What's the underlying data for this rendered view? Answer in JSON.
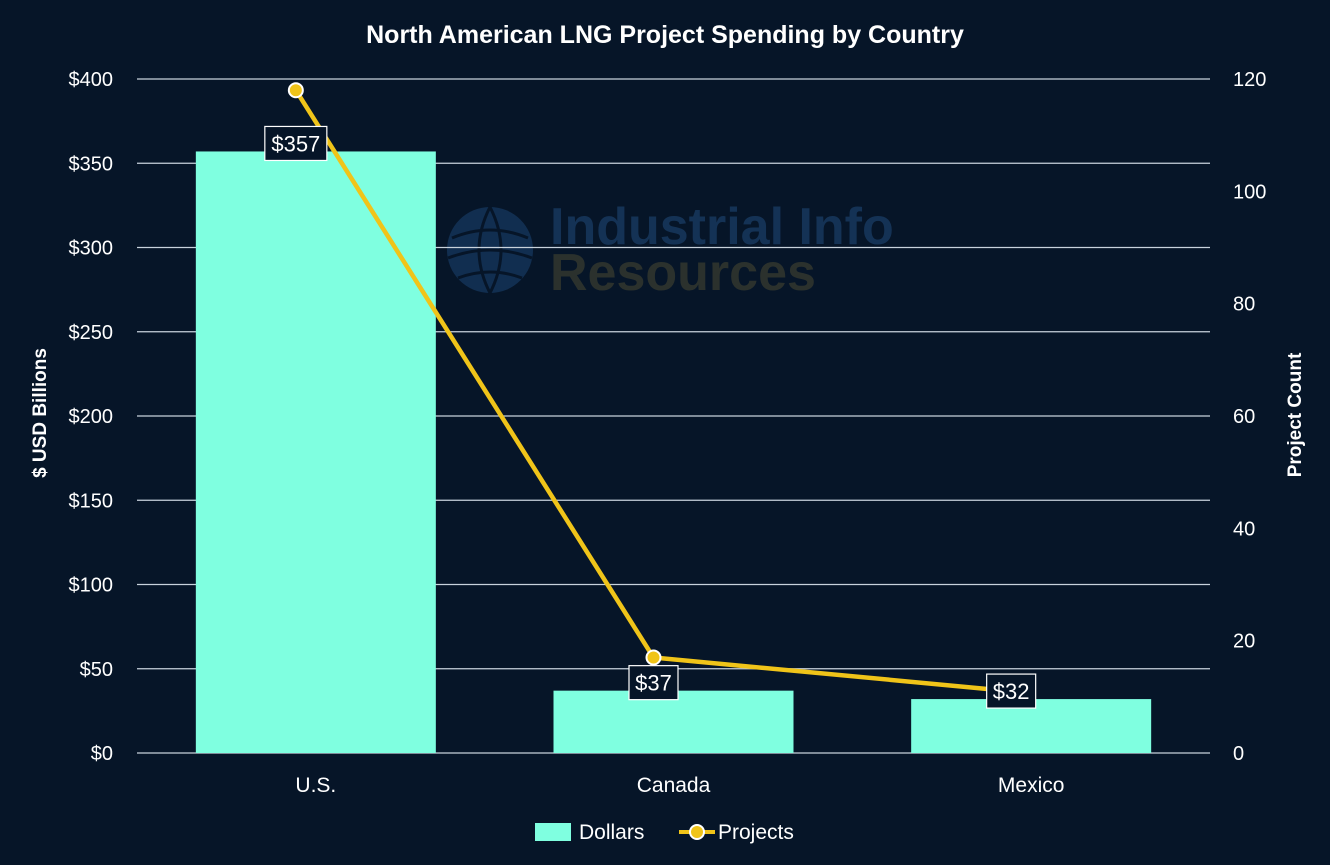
{
  "chart_data": {
    "type": "bar",
    "title": "North American LNG Project Spending by Country",
    "categories": [
      "U.S.",
      "Canada",
      "Mexico"
    ],
    "series": [
      {
        "name": "Dollars",
        "type": "bar",
        "axis": "left",
        "values": [
          357,
          37,
          32
        ],
        "labels": [
          "$357",
          "$37",
          "$32"
        ],
        "color": "#7fffe0"
      },
      {
        "name": "Projects",
        "type": "line",
        "axis": "right",
        "values": [
          118,
          17,
          11
        ],
        "color": "#f0c419"
      }
    ],
    "ylabel": "$ USD Billions",
    "y2label": "Project Count",
    "ylim": [
      0,
      400
    ],
    "y2lim": [
      0,
      120
    ],
    "yticks": [
      0,
      50,
      100,
      150,
      200,
      250,
      300,
      350,
      400
    ],
    "ytick_labels": [
      "$0",
      "$50",
      "$100",
      "$150",
      "$200",
      "$250",
      "$300",
      "$350",
      "$400"
    ],
    "y2ticks": [
      0,
      20,
      40,
      60,
      80,
      100,
      120
    ],
    "y2tick_labels": [
      "0",
      "20",
      "40",
      "60",
      "80",
      "100",
      "120"
    ],
    "grid": true,
    "legend": "bottom-center"
  },
  "watermark": {
    "line1": "Industrial Info",
    "line2": "Resources"
  },
  "colors": {
    "background": "#061528",
    "text": "#ffffff",
    "grid": "#c8d2dc",
    "bar": "#7fffe0",
    "line": "#f0c419"
  }
}
